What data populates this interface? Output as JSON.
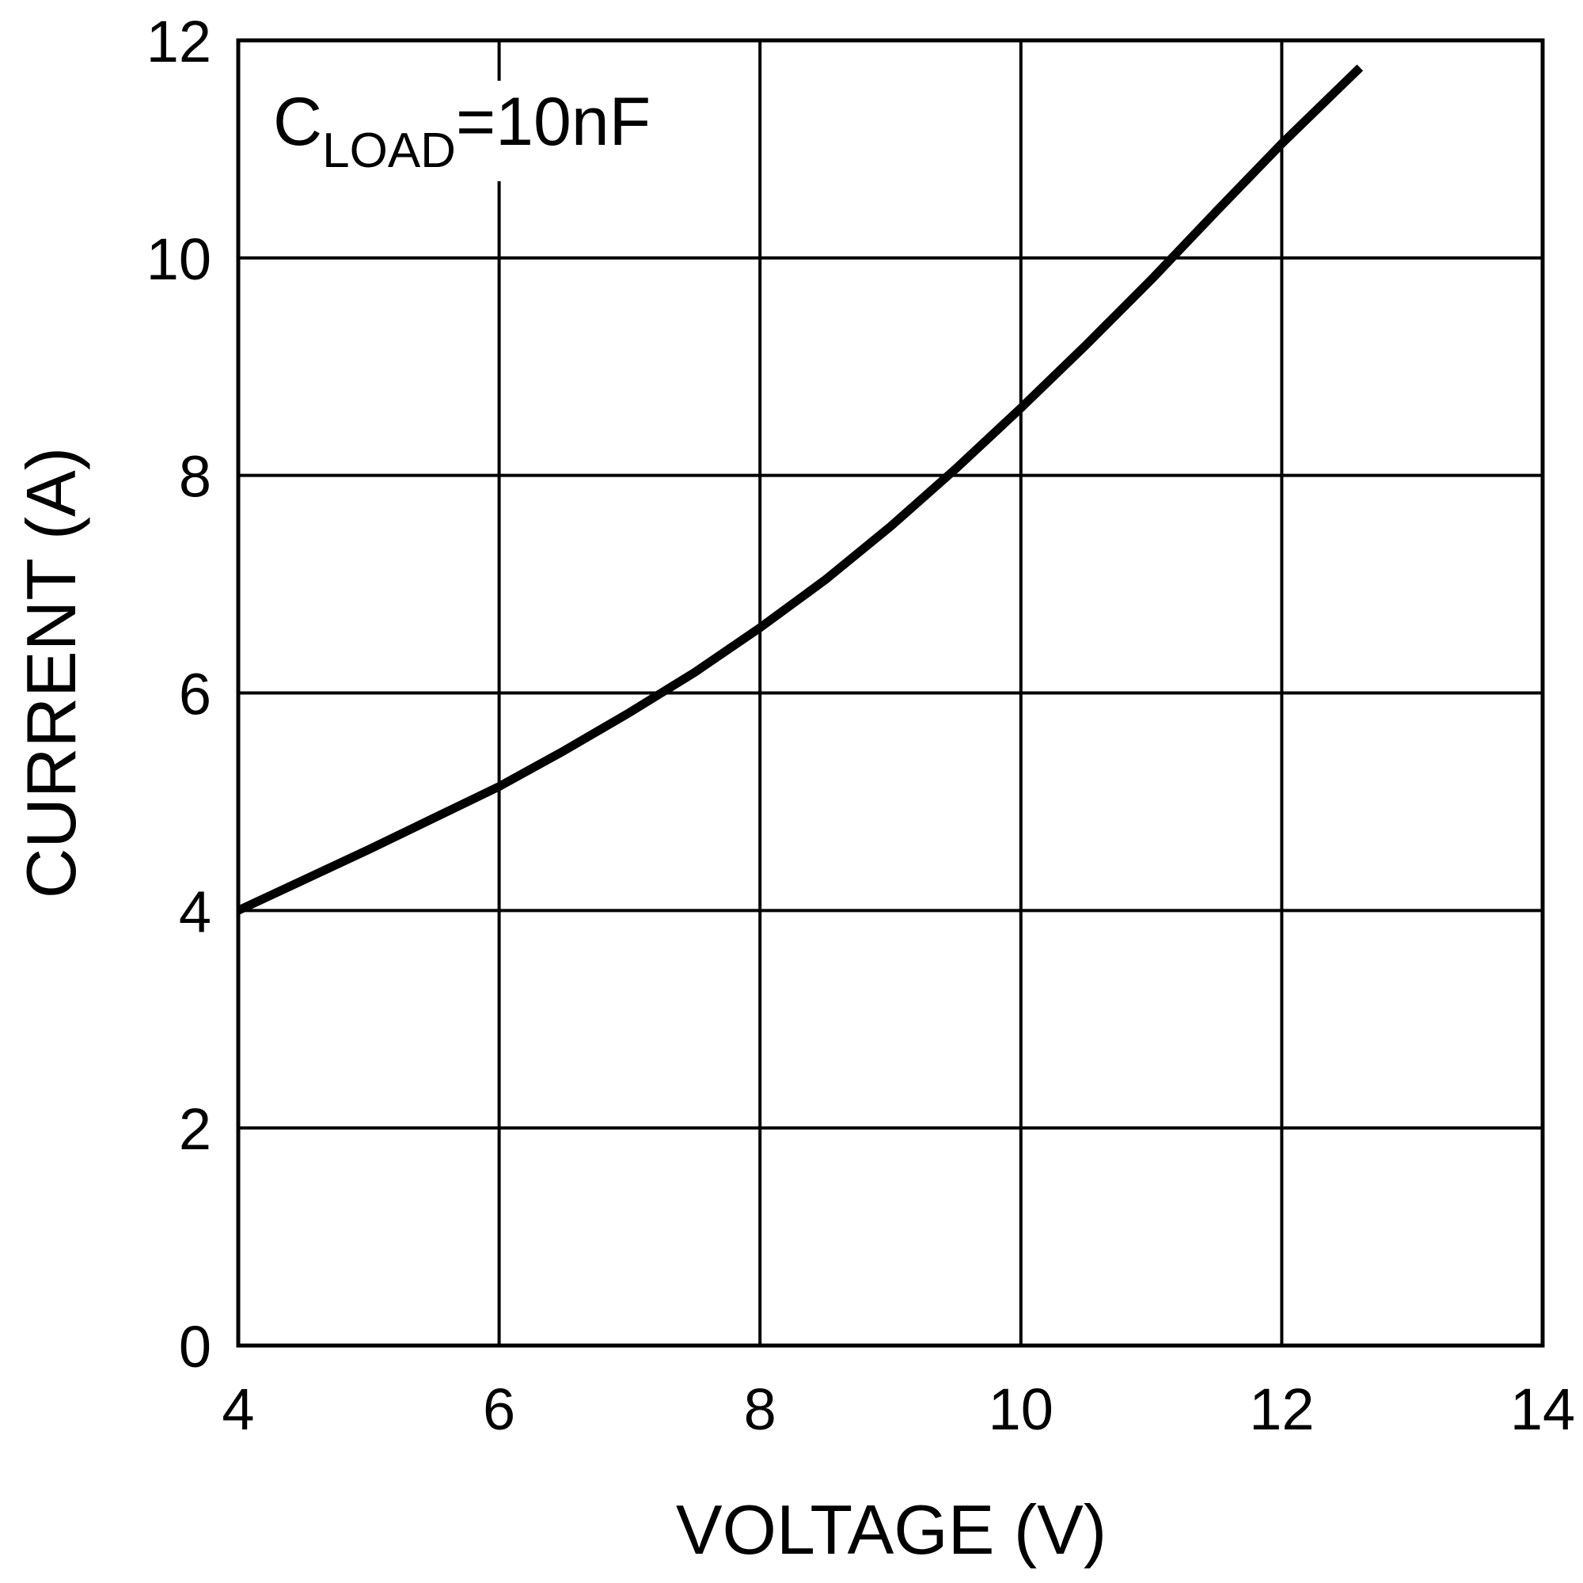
{
  "chart_data": {
    "type": "line",
    "title": "",
    "xlabel": "VOLTAGE (V)",
    "ylabel": "CURRENT (A)",
    "xlim": [
      4,
      14
    ],
    "ylim": [
      0,
      12
    ],
    "xticks": [
      "4",
      "6",
      "8",
      "10",
      "12",
      "14"
    ],
    "yticks": [
      "0",
      "2",
      "4",
      "6",
      "8",
      "10",
      "12"
    ],
    "grid": true,
    "annotation": {
      "main": "C",
      "subscript": "LOAD",
      "suffix": "=10nF"
    },
    "series": [
      {
        "name": "",
        "color": "#000000",
        "x": [
          4.0,
          4.5,
          5.0,
          5.5,
          6.0,
          6.5,
          7.0,
          7.5,
          8.0,
          8.5,
          9.0,
          9.5,
          10.0,
          10.5,
          11.0,
          11.5,
          12.0,
          12.6
        ],
        "y": [
          4.0,
          4.28,
          4.56,
          4.85,
          5.14,
          5.47,
          5.82,
          6.19,
          6.6,
          7.04,
          7.53,
          8.06,
          8.62,
          9.2,
          9.8,
          10.43,
          11.05,
          11.75
        ]
      }
    ]
  }
}
